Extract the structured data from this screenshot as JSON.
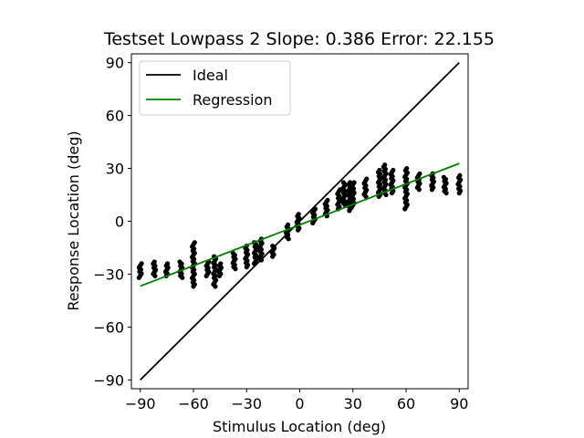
{
  "chart_data": {
    "type": "scatter",
    "title": "Testset Lowpass 2 Slope: 0.386 Error: 22.155",
    "xlabel": "Stimulus Location (deg)",
    "ylabel": "Response Location (deg)",
    "xlim": [
      -95,
      95
    ],
    "ylim": [
      -95,
      95
    ],
    "xticks": [
      -90,
      -60,
      -30,
      0,
      30,
      60,
      90
    ],
    "yticks": [
      -90,
      -60,
      -30,
      0,
      30,
      60,
      90
    ],
    "grid": false,
    "legend_position": "top-left",
    "colors": {
      "points": "#000000",
      "ideal": "#000000",
      "regression": "#008000"
    },
    "legend": [
      {
        "label": "Ideal",
        "color": "#000000"
      },
      {
        "label": "Regression",
        "color": "#008000"
      }
    ],
    "lines": [
      {
        "name": "Ideal",
        "color": "#000000",
        "points": [
          [
            -90,
            -90
          ],
          [
            90,
            90
          ]
        ]
      },
      {
        "name": "Regression",
        "color": "#008000",
        "points": [
          [
            -90,
            -36.8
          ],
          [
            90,
            32.8
          ]
        ]
      }
    ],
    "clusters": [
      {
        "x": -90,
        "ymin": -32,
        "ymax": -24
      },
      {
        "x": -82,
        "ymin": -31,
        "ymax": -23
      },
      {
        "x": -75,
        "ymin": -31,
        "ymax": -24
      },
      {
        "x": -67,
        "ymin": -32,
        "ymax": -23
      },
      {
        "x": -60,
        "ymin": -37,
        "ymax": -12
      },
      {
        "x": -52,
        "ymin": -31,
        "ymax": -23
      },
      {
        "x": -48,
        "ymin": -37,
        "ymax": -20
      },
      {
        "x": -45,
        "ymin": -31,
        "ymax": -24
      },
      {
        "x": -37,
        "ymin": -27,
        "ymax": -18
      },
      {
        "x": -30,
        "ymin": -26,
        "ymax": -14
      },
      {
        "x": -25,
        "ymin": -24,
        "ymax": -12
      },
      {
        "x": -22,
        "ymin": -22,
        "ymax": -10
      },
      {
        "x": -15,
        "ymin": -20,
        "ymax": -14
      },
      {
        "x": -7,
        "ymin": -10,
        "ymax": -2
      },
      {
        "x": -1,
        "ymin": -5,
        "ymax": 4
      },
      {
        "x": 8,
        "ymin": -1,
        "ymax": 7
      },
      {
        "x": 15,
        "ymin": 3,
        "ymax": 12
      },
      {
        "x": 22,
        "ymin": 7,
        "ymax": 18
      },
      {
        "x": 25,
        "ymin": 9,
        "ymax": 22
      },
      {
        "x": 28,
        "ymin": 6,
        "ymax": 22
      },
      {
        "x": 30,
        "ymin": 8,
        "ymax": 22
      },
      {
        "x": 37,
        "ymin": 14,
        "ymax": 24
      },
      {
        "x": 45,
        "ymin": 14,
        "ymax": 29
      },
      {
        "x": 48,
        "ymin": 15,
        "ymax": 32
      },
      {
        "x": 52,
        "ymin": 16,
        "ymax": 29
      },
      {
        "x": 60,
        "ymin": 7,
        "ymax": 30
      },
      {
        "x": 67,
        "ymin": 18,
        "ymax": 27
      },
      {
        "x": 75,
        "ymin": 18,
        "ymax": 27
      },
      {
        "x": 82,
        "ymin": 16,
        "ymax": 25
      },
      {
        "x": 90,
        "ymin": 16,
        "ymax": 26
      }
    ]
  }
}
